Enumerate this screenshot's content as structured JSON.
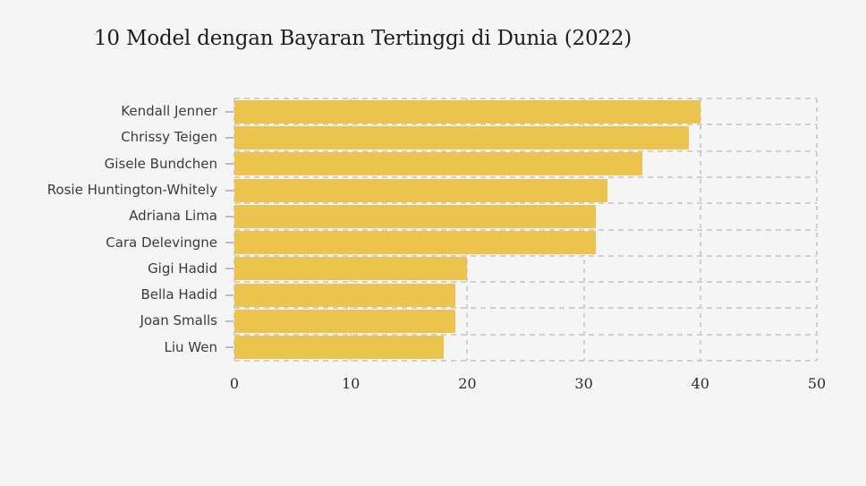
{
  "title": "10 Model dengan Bayaran Tertinggi di Dunia (2022)",
  "chart_data": {
    "type": "bar",
    "orientation": "horizontal",
    "title": "10 Model dengan Bayaran Tertinggi di Dunia (2022)",
    "categories": [
      "Kendall Jenner",
      "Chrissy Teigen",
      "Gisele Bundchen",
      "Rosie Huntington-Whitely",
      "Adriana Lima",
      "Cara Delevingne",
      "Gigi Hadid",
      "Bella Hadid",
      "Joan Smalls",
      "Liu Wen"
    ],
    "values": [
      40,
      39,
      35,
      32,
      31,
      31,
      20,
      19,
      19,
      18
    ],
    "xlabel": "",
    "ylabel": "",
    "xlim": [
      0,
      50
    ],
    "x_ticks": [
      0,
      10,
      20,
      30,
      40,
      50
    ],
    "grid": "dashed",
    "legend": "none",
    "colors": {
      "bar": "#ECC44D",
      "background": "#F5F5F5",
      "grid": "#CFCFCF",
      "y_tick_mark": "#BDBDBD",
      "category_label": "#3B3B3B",
      "x_tick_label": "#2D2D2D",
      "title": "#1D1D1D"
    }
  }
}
